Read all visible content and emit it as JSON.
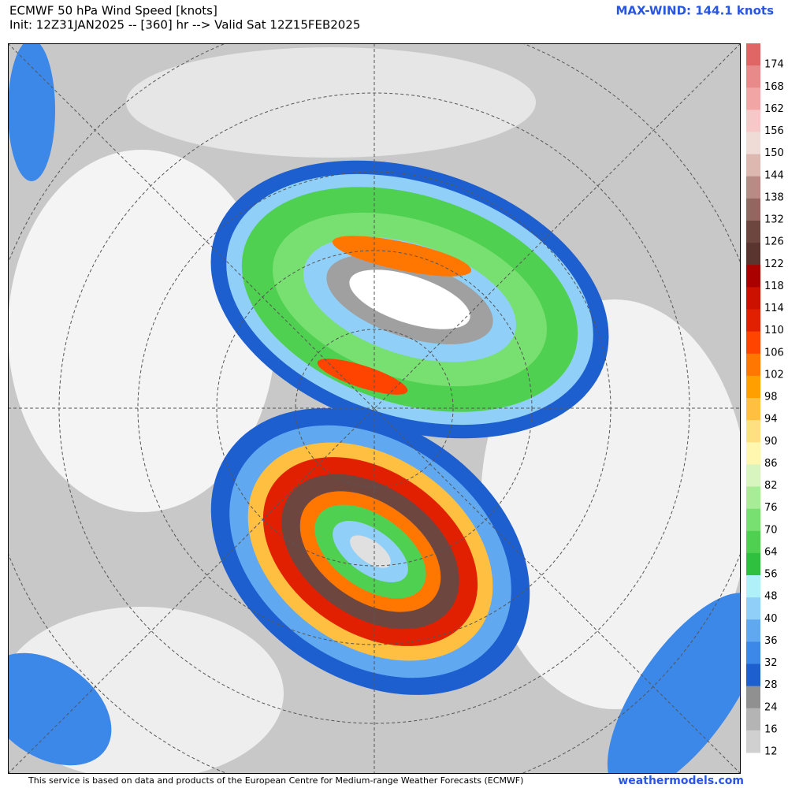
{
  "header": {
    "title": "ECMWF 50 hPa Wind Speed [knots]",
    "subtitle": "Init: 12Z31JAN2025 -- [360] hr --> Valid Sat 12Z15FEB2025",
    "max_wind": "MAX-WIND: 144.1 knots"
  },
  "colorbar": {
    "ticks": [
      174,
      168,
      162,
      156,
      150,
      144,
      138,
      132,
      126,
      122,
      118,
      114,
      110,
      106,
      102,
      98,
      94,
      90,
      86,
      82,
      76,
      70,
      64,
      56,
      48,
      40,
      36,
      32,
      28,
      24,
      16,
      12
    ],
    "colors": [
      "#e06666",
      "#e88a8a",
      "#f2a5a5",
      "#f7c8c8",
      "#efdcd6",
      "#dcb8b0",
      "#b88b84",
      "#946660",
      "#6e4640",
      "#5a3530",
      "#aa0000",
      "#cc1100",
      "#e02000",
      "#ff4400",
      "#ff7700",
      "#ffa000",
      "#ffbf40",
      "#ffe080",
      "#fff6b0",
      "#d8f5c0",
      "#a8ec98",
      "#78e070",
      "#50d050",
      "#30c040",
      "#b0f0f8",
      "#90d0f8",
      "#60a8f0",
      "#3c88e8",
      "#1e5fd0",
      "#909090",
      "#b4b4b4",
      "#d0d0d0"
    ]
  },
  "footer": {
    "credit": "This service is based on data and products of the European Centre for Medium-range Weather Forecasts (ECMWF)",
    "site": "weathermodels.com"
  }
}
